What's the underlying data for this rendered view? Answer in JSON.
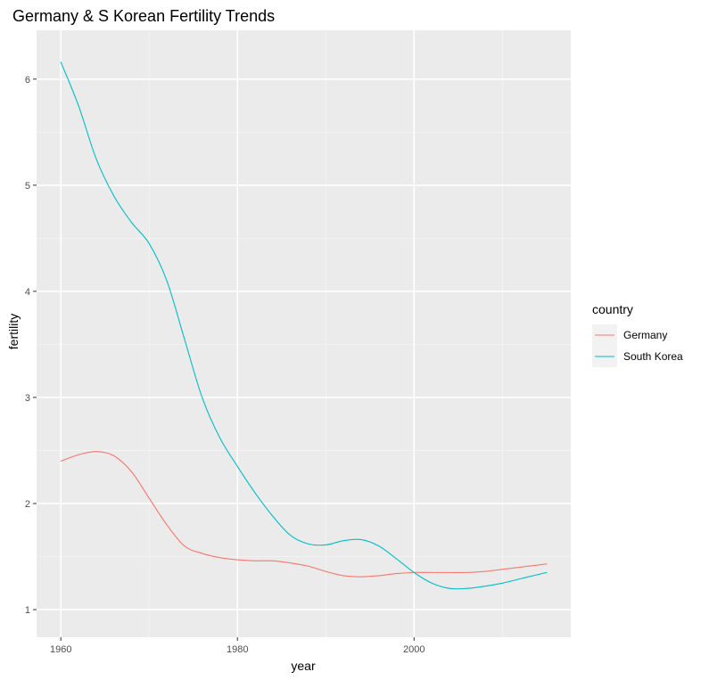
{
  "chart_data": {
    "type": "line",
    "title": "Germany & S Korean Fertility Trends",
    "xlabel": "year",
    "ylabel": "fertility",
    "xlim": [
      1960,
      2015
    ],
    "ylim": [
      1.0,
      6.2
    ],
    "x_ticks": [
      1960,
      1980,
      2000
    ],
    "y_ticks": [
      1,
      2,
      3,
      4,
      5,
      6
    ],
    "grid": true,
    "legend": {
      "title": "country",
      "position": "right"
    },
    "series": [
      {
        "name": "Germany",
        "color": "#F8766D",
        "x": [
          1960,
          1962,
          1964,
          1966,
          1968,
          1970,
          1972,
          1974,
          1976,
          1978,
          1980,
          1982,
          1984,
          1986,
          1988,
          1990,
          1992,
          1994,
          1996,
          1998,
          2000,
          2002,
          2004,
          2006,
          2008,
          2010,
          2012,
          2014,
          2015
        ],
        "y": [
          2.4,
          2.46,
          2.49,
          2.45,
          2.3,
          2.05,
          1.8,
          1.6,
          1.53,
          1.49,
          1.47,
          1.46,
          1.46,
          1.44,
          1.41,
          1.36,
          1.32,
          1.31,
          1.32,
          1.34,
          1.35,
          1.35,
          1.35,
          1.35,
          1.36,
          1.38,
          1.4,
          1.42,
          1.43
        ]
      },
      {
        "name": "South Korea",
        "color": "#00BFC4",
        "x": [
          1960,
          1962,
          1964,
          1966,
          1968,
          1970,
          1972,
          1974,
          1976,
          1978,
          1980,
          1982,
          1984,
          1986,
          1988,
          1990,
          1992,
          1994,
          1996,
          1998,
          2000,
          2002,
          2004,
          2006,
          2008,
          2010,
          2012,
          2014,
          2015
        ],
        "y": [
          6.16,
          5.75,
          5.25,
          4.9,
          4.65,
          4.45,
          4.1,
          3.55,
          3.0,
          2.62,
          2.35,
          2.1,
          1.88,
          1.7,
          1.62,
          1.61,
          1.65,
          1.66,
          1.6,
          1.48,
          1.35,
          1.25,
          1.2,
          1.2,
          1.22,
          1.25,
          1.29,
          1.33,
          1.35
        ]
      }
    ]
  }
}
